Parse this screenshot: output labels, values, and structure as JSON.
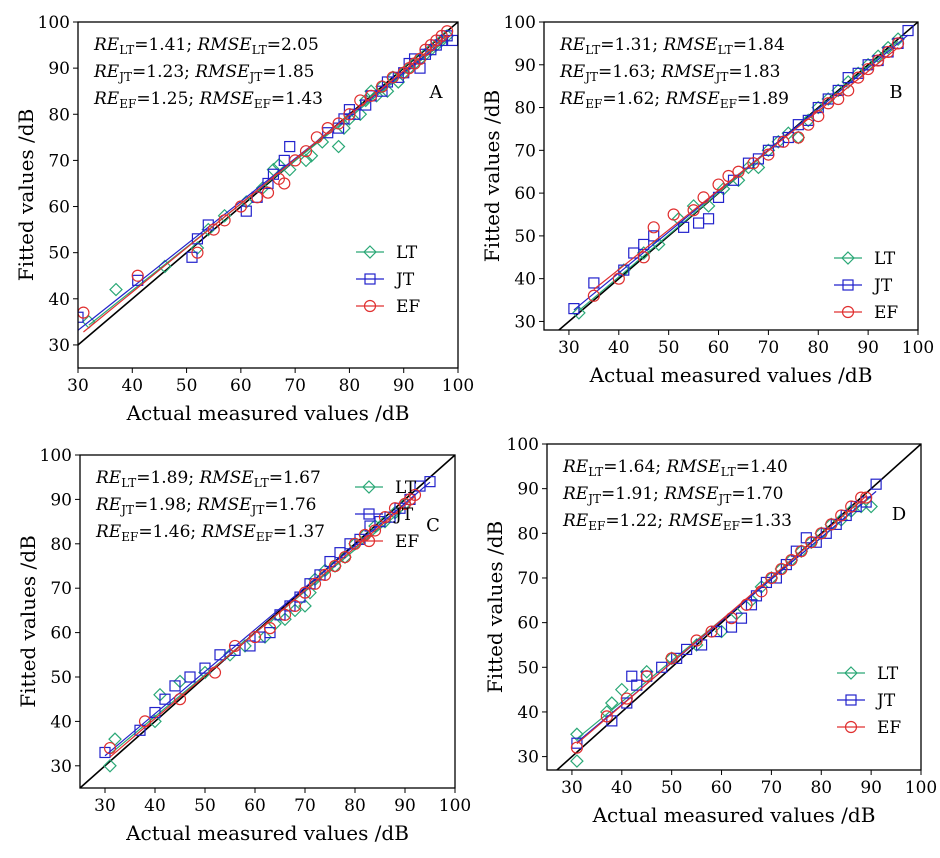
{
  "chart_data": [
    {
      "type": "scatter",
      "panel_label": "A",
      "xlabel": "Actual measured values /dB",
      "ylabel": "Fitted values /dB",
      "xlim": [
        30,
        100
      ],
      "ylim": [
        25,
        100
      ],
      "x_ticks": [
        "30",
        "40",
        "50",
        "60",
        "70",
        "80",
        "90",
        "100"
      ],
      "y_ticks": [
        "30",
        "40",
        "50",
        "60",
        "70",
        "80",
        "90",
        "100"
      ],
      "annotations": [
        {
          "re_sub": "LT",
          "re_val": "1.41",
          "rmse_sub": "LT",
          "rmse_val": "2.05"
        },
        {
          "re_sub": "JT",
          "re_val": "1.23",
          "rmse_sub": "JT",
          "rmse_val": "1.85"
        },
        {
          "re_sub": "EF",
          "re_val": "1.25",
          "rmse_sub": "EF",
          "rmse_val": "1.43"
        }
      ],
      "legend": [
        "LT",
        "JT",
        "EF"
      ],
      "series": [
        {
          "name": "LT",
          "color": "#2aa876",
          "marker": "diamond",
          "x": [
            32,
            37,
            46,
            52,
            54,
            57,
            61,
            64,
            66,
            67,
            69,
            72,
            73,
            75,
            78,
            79,
            80,
            82,
            83,
            84,
            85,
            86,
            87,
            88,
            89,
            90,
            91,
            92,
            93,
            94,
            95,
            96,
            97,
            98
          ],
          "y": [
            35,
            42,
            47,
            51,
            55,
            58,
            61,
            64,
            68,
            69,
            68,
            70,
            71,
            74,
            73,
            77,
            79,
            80,
            83,
            85,
            84,
            86,
            85,
            88,
            87,
            89,
            90,
            91,
            92,
            93,
            94,
            95,
            96,
            97
          ]
        },
        {
          "name": "JT",
          "color": "#2222cc",
          "marker": "square",
          "x": [
            30,
            41,
            51,
            52,
            54,
            61,
            63,
            65,
            66,
            68,
            69,
            76,
            78,
            79,
            80,
            81,
            83,
            84,
            86,
            87,
            89,
            90,
            91,
            92,
            93,
            94,
            95,
            96,
            97,
            98,
            99
          ],
          "y": [
            36,
            44,
            49,
            53,
            56,
            59,
            62,
            65,
            67,
            70,
            73,
            76,
            77,
            79,
            81,
            80,
            82,
            84,
            85,
            87,
            88,
            89,
            91,
            92,
            90,
            93,
            94,
            95,
            96,
            97,
            96
          ]
        },
        {
          "name": "EF",
          "color": "#e03030",
          "marker": "circle",
          "x": [
            31,
            41,
            52,
            55,
            57,
            60,
            63,
            65,
            67,
            68,
            70,
            72,
            74,
            76,
            78,
            80,
            82,
            84,
            86,
            88,
            90,
            91,
            92,
            93,
            94,
            95,
            96,
            97,
            98
          ],
          "y": [
            37,
            45,
            50,
            55,
            57,
            60,
            62,
            63,
            66,
            65,
            70,
            72,
            75,
            77,
            78,
            80,
            83,
            84,
            86,
            88,
            89,
            90,
            91,
            92,
            94,
            95,
            96,
            97,
            98
          ]
        }
      ]
    },
    {
      "type": "scatter",
      "panel_label": "B",
      "xlabel": "Actual measured values /dB",
      "ylabel": "Fitted values /dB",
      "xlim": [
        25,
        100
      ],
      "ylim": [
        28,
        100
      ],
      "x_ticks": [
        "30",
        "40",
        "50",
        "60",
        "70",
        "80",
        "90",
        "100"
      ],
      "y_ticks": [
        "30",
        "40",
        "50",
        "60",
        "70",
        "80",
        "90",
        "100"
      ],
      "annotations": [
        {
          "re_sub": "LT",
          "re_val": "1.31",
          "rmse_sub": "LT",
          "rmse_val": "1.84"
        },
        {
          "re_sub": "JT",
          "re_val": "1.63",
          "rmse_sub": "JT",
          "rmse_val": "1.83"
        },
        {
          "re_sub": "EF",
          "re_val": "1.62",
          "rmse_sub": "EF",
          "rmse_val": "1.89"
        }
      ],
      "legend": [
        "LT",
        "JT",
        "EF"
      ],
      "series": [
        {
          "name": "LT",
          "color": "#2aa876",
          "marker": "diamond",
          "x": [
            32,
            41,
            45,
            48,
            52,
            55,
            58,
            61,
            64,
            66,
            68,
            70,
            72,
            74,
            76,
            78,
            80,
            82,
            84,
            86,
            88,
            90,
            92,
            94,
            96
          ],
          "y": [
            32,
            42,
            46,
            48,
            54,
            57,
            57,
            61,
            63,
            66,
            66,
            70,
            72,
            74,
            73,
            77,
            80,
            82,
            84,
            86,
            88,
            90,
            92,
            94,
            96
          ]
        },
        {
          "name": "JT",
          "color": "#2222cc",
          "marker": "square",
          "x": [
            31,
            35,
            41,
            43,
            45,
            47,
            53,
            56,
            58,
            60,
            63,
            66,
            68,
            70,
            72,
            74,
            76,
            78,
            80,
            82,
            84,
            86,
            88,
            90,
            92,
            94,
            96,
            98
          ],
          "y": [
            33,
            39,
            42,
            46,
            48,
            50,
            52,
            53,
            54,
            59,
            63,
            67,
            68,
            70,
            72,
            73,
            76,
            77,
            80,
            82,
            84,
            87,
            88,
            90,
            91,
            93,
            95,
            98
          ]
        },
        {
          "name": "EF",
          "color": "#e03030",
          "marker": "circle",
          "x": [
            35,
            40,
            45,
            47,
            51,
            55,
            57,
            60,
            62,
            64,
            67,
            70,
            73,
            76,
            78,
            80,
            82,
            84,
            86,
            88,
            90,
            92,
            94,
            96
          ],
          "y": [
            36,
            40,
            45,
            52,
            55,
            56,
            59,
            62,
            64,
            65,
            67,
            69,
            72,
            73,
            76,
            78,
            81,
            82,
            84,
            87,
            89,
            91,
            93,
            95
          ]
        }
      ]
    },
    {
      "type": "scatter",
      "panel_label": "C",
      "xlabel": "Actual measured values /dB",
      "ylabel": "Fitted values /dB",
      "xlim": [
        25,
        100
      ],
      "ylim": [
        25,
        100
      ],
      "x_ticks": [
        "30",
        "40",
        "50",
        "60",
        "70",
        "80",
        "90",
        "100"
      ],
      "y_ticks": [
        "30",
        "40",
        "50",
        "60",
        "70",
        "80",
        "90",
        "100"
      ],
      "annotations": [
        {
          "re_sub": "LT",
          "re_val": "1.89",
          "rmse_sub": "LT",
          "rmse_val": "1.67"
        },
        {
          "re_sub": "JT",
          "re_val": "1.98",
          "rmse_sub": "JT",
          "rmse_val": "1.76"
        },
        {
          "re_sub": "EF",
          "re_val": "1.46",
          "rmse_sub": "EF",
          "rmse_val": "1.37"
        }
      ],
      "legend": [
        "LT",
        "JT",
        "EF"
      ],
      "series": [
        {
          "name": "LT",
          "color": "#2aa876",
          "marker": "diamond",
          "x": [
            31,
            32,
            40,
            41,
            45,
            50,
            55,
            58,
            62,
            64,
            66,
            68,
            70,
            71,
            72,
            74,
            76,
            78,
            80,
            82,
            84,
            86,
            88,
            90
          ],
          "y": [
            30,
            36,
            40,
            46,
            49,
            51,
            55,
            57,
            59,
            62,
            63,
            65,
            66,
            69,
            72,
            74,
            75,
            77,
            80,
            82,
            84,
            85,
            87,
            89
          ]
        },
        {
          "name": "JT",
          "color": "#2222cc",
          "marker": "square",
          "x": [
            30,
            37,
            40,
            42,
            44,
            47,
            50,
            53,
            56,
            59,
            61,
            63,
            65,
            67,
            69,
            71,
            73,
            75,
            77,
            79,
            81,
            83,
            85,
            87,
            89,
            91,
            93,
            95
          ],
          "y": [
            33,
            38,
            42,
            45,
            48,
            50,
            52,
            55,
            56,
            57,
            59,
            60,
            64,
            66,
            68,
            71,
            73,
            76,
            78,
            80,
            81,
            84,
            85,
            86,
            88,
            90,
            93,
            94
          ]
        },
        {
          "name": "EF",
          "color": "#e03030",
          "marker": "circle",
          "x": [
            31,
            38,
            45,
            52,
            56,
            60,
            63,
            66,
            68,
            70,
            72,
            74,
            76,
            78,
            80,
            82,
            84,
            86,
            88,
            90,
            91,
            92
          ],
          "y": [
            34,
            40,
            45,
            51,
            57,
            59,
            61,
            64,
            66,
            69,
            71,
            73,
            75,
            77,
            80,
            82,
            83,
            86,
            88,
            89,
            90,
            91
          ]
        }
      ]
    },
    {
      "type": "scatter",
      "panel_label": "D",
      "xlabel": "Actual measured values /dB",
      "ylabel": "Fitted values /dB",
      "xlim": [
        25,
        100
      ],
      "ylim": [
        27,
        100
      ],
      "x_ticks": [
        "30",
        "40",
        "50",
        "60",
        "70",
        "80",
        "90",
        "100"
      ],
      "y_ticks": [
        "30",
        "40",
        "50",
        "60",
        "70",
        "80",
        "90",
        "100"
      ],
      "annotations": [
        {
          "re_sub": "LT",
          "re_val": "1.64",
          "rmse_sub": "LT",
          "rmse_val": "1.40"
        },
        {
          "re_sub": "JT",
          "re_val": "1.91",
          "rmse_sub": "JT",
          "rmse_val": "1.70"
        },
        {
          "re_sub": "EF",
          "re_val": "1.22",
          "rmse_sub": "EF",
          "rmse_val": "1.33"
        }
      ],
      "legend": [
        "LT",
        "JT",
        "EF"
      ],
      "series": [
        {
          "name": "LT",
          "color": "#2aa876",
          "marker": "diamond",
          "x": [
            31,
            31,
            37,
            38,
            40,
            45,
            50,
            55,
            60,
            63,
            66,
            68,
            70,
            72,
            74,
            76,
            78,
            80,
            82,
            84,
            86,
            88,
            90
          ],
          "y": [
            29,
            35,
            40,
            42,
            45,
            49,
            52,
            55,
            58,
            62,
            65,
            68,
            70,
            72,
            74,
            76,
            78,
            80,
            82,
            83,
            85,
            86,
            86
          ]
        },
        {
          "name": "JT",
          "color": "#2222cc",
          "marker": "square",
          "x": [
            31,
            38,
            41,
            42,
            43,
            45,
            48,
            51,
            53,
            56,
            59,
            62,
            64,
            66,
            67,
            69,
            71,
            73,
            75,
            77,
            79,
            81,
            83,
            85,
            87,
            89,
            91
          ],
          "y": [
            33,
            38,
            42,
            48,
            46,
            48,
            50,
            52,
            54,
            55,
            58,
            59,
            61,
            64,
            66,
            69,
            70,
            73,
            76,
            79,
            78,
            80,
            82,
            84,
            86,
            87,
            91
          ]
        },
        {
          "name": "EF",
          "color": "#e03030",
          "marker": "circle",
          "x": [
            31,
            37,
            41,
            45,
            50,
            55,
            58,
            62,
            65,
            68,
            70,
            72,
            74,
            76,
            78,
            80,
            82,
            84,
            86,
            88,
            89
          ],
          "y": [
            32,
            39,
            43,
            48,
            52,
            56,
            58,
            61,
            64,
            67,
            70,
            72,
            74,
            76,
            78,
            80,
            82,
            84,
            86,
            88,
            88
          ]
        }
      ]
    }
  ]
}
